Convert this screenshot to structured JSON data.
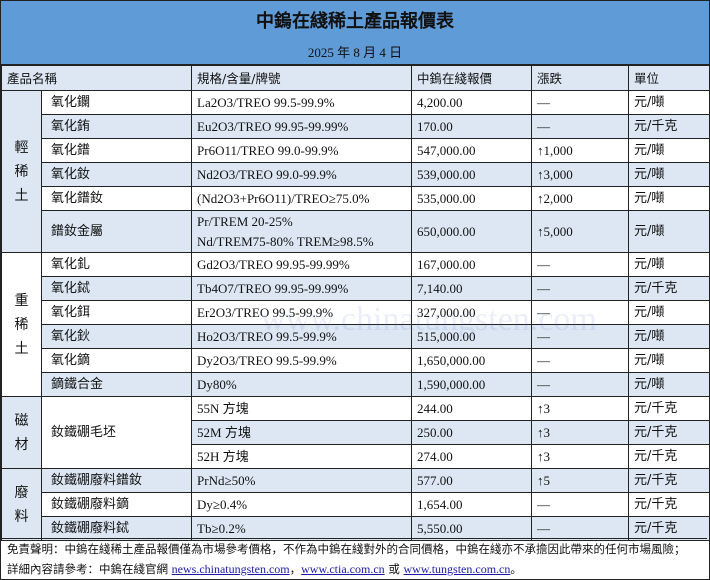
{
  "title": "中鎢在綫稀土產品報價表",
  "date": "2025 年 8 月 4 日",
  "headers": [
    "產品名稱",
    "規格/含量/牌號",
    "中鎢在綫報價",
    "漲跌",
    "單位"
  ],
  "groups": {
    "light": "輕稀土",
    "heavy": "重稀土",
    "magnet": "磁材",
    "waste": "廢料"
  },
  "rows": [
    {
      "name": "氧化鑭",
      "spec": "La2O3/TREO 99.5-99.9%",
      "price": "4,200.00",
      "change": "—",
      "unit": "元/噸"
    },
    {
      "name": "氧化銪",
      "spec": "Eu2O3/TREO 99.95-99.99%",
      "price": "170.00",
      "change": "—",
      "unit": "元/千克"
    },
    {
      "name": "氧化鐠",
      "spec": "Pr6O11/TREO 99.0-99.9%",
      "price": "547,000.00",
      "change": "↑1,000",
      "unit": "元/噸"
    },
    {
      "name": "氧化釹",
      "spec": "Nd2O3/TREO 99.0-99.9%",
      "price": "539,000.00",
      "change": "↑3,000",
      "unit": "元/噸"
    },
    {
      "name": "氧化鐠釹",
      "spec": "(Nd2O3+Pr6O11)/TREO≥75.0%",
      "price": "535,000.00",
      "change": "↑2,000",
      "unit": "元/噸"
    },
    {
      "name": "鐠釹金屬",
      "spec": "Pr/TREM 20-25%",
      "spec2": "Nd/TREM75-80% TREM≥98.5%",
      "price": "650,000.00",
      "change": "↑5,000",
      "unit": "元/噸"
    },
    {
      "name": "氧化釓",
      "spec": "Gd2O3/TREO 99.95-99.99%",
      "price": "167,000.00",
      "change": "—",
      "unit": "元/噸"
    },
    {
      "name": "氧化鋱",
      "spec": "Tb4O7/TREO 99.95-99.99%",
      "price": "7,140.00",
      "change": "—",
      "unit": "元/千克"
    },
    {
      "name": "氧化鉺",
      "spec": "Er2O3/TREO 99.5-99.9%",
      "price": "327,000.00",
      "change": "—",
      "unit": "元/噸"
    },
    {
      "name": "氧化鈥",
      "spec": "Ho2O3/TREO 99.5-99.9%",
      "price": "515,000.00",
      "change": "—",
      "unit": "元/噸"
    },
    {
      "name": "氧化鏑",
      "spec": "Dy2O3/TREO 99.5-99.9%",
      "price": "1,650,000.00",
      "change": "—",
      "unit": "元/噸"
    },
    {
      "name": "鏑鐵合金",
      "spec": "Dy80%",
      "price": "1,590,000.00",
      "change": "—",
      "unit": "元/噸"
    },
    {
      "name": "釹鐵硼毛坯",
      "spec": "55N 方塊",
      "price": "244.00",
      "change": "↑3",
      "unit": "元/千克"
    },
    {
      "spec": "52M 方塊",
      "price": "250.00",
      "change": "↑3",
      "unit": "元/千克"
    },
    {
      "spec": "52H 方塊",
      "price": "274.00",
      "change": "↑3",
      "unit": "元/千克"
    },
    {
      "name": "釹鐵硼廢料鐠釹",
      "spec": "PrNd≥50%",
      "price": "577.00",
      "change": "↑5",
      "unit": "元/千克"
    },
    {
      "name": "釹鐵硼廢料鏑",
      "spec": "Dy≥0.4%",
      "price": "1,654.00",
      "change": "—",
      "unit": "元/千克"
    },
    {
      "name": "釹鐵硼廢料鋱",
      "spec": "Tb≥0.2%",
      "price": "5,550.00",
      "change": "—",
      "unit": "元/千克"
    }
  ],
  "disclaimer": {
    "line1": "免責聲明：中鎢在綫稀土產品報價僅為市場參考價格，不作為中鎢在綫對外的合同價格，中鎢在綫亦不承擔因此帶來的任何市場風險；",
    "line2_prefix": "詳細內容請參考：中鎢在綫官網 ",
    "link1": "news.chinatungsten.com",
    "sep1": "，",
    "link2": "www.ctia.com.cn",
    "sep2": " 或 ",
    "link3": "www.tungsten.com.cn",
    "end": "。"
  },
  "watermark": "www.chinatungsten.com"
}
